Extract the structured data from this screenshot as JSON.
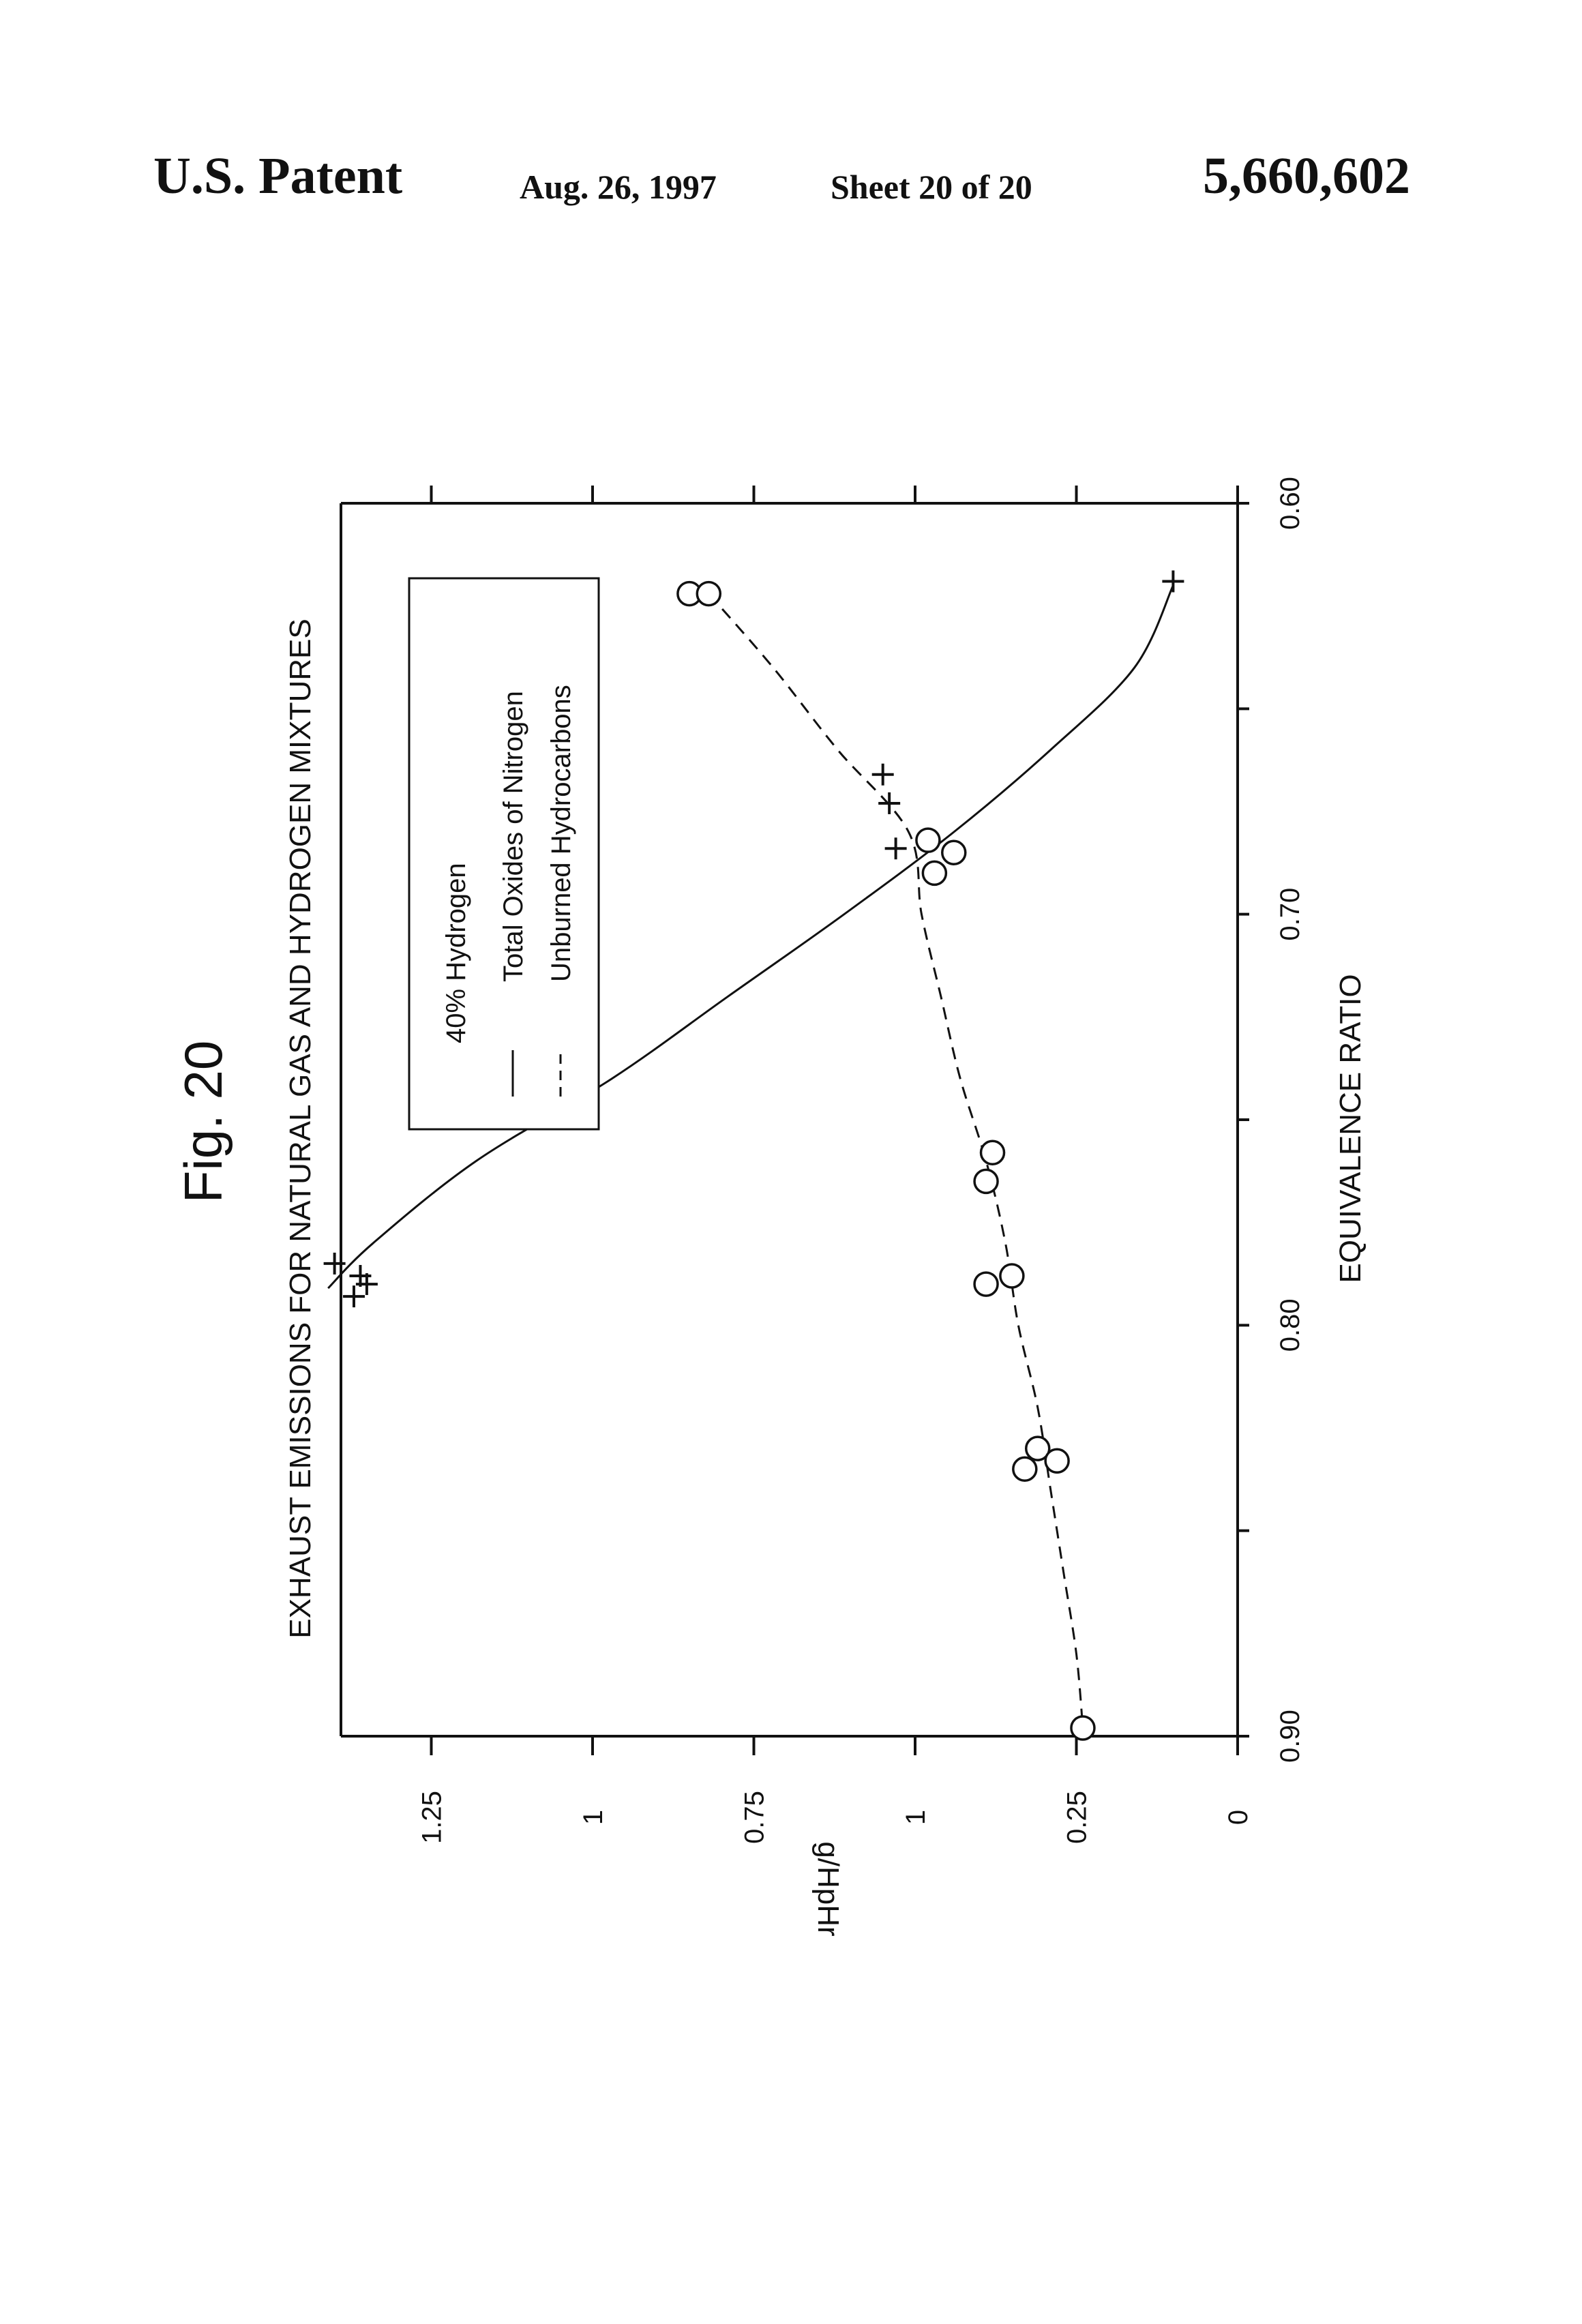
{
  "header": {
    "patent": "U.S. Patent",
    "date": "Aug. 26, 1997",
    "sheet": "Sheet 20 of 20",
    "number": "5,660,602"
  },
  "figure_label": "Fig. 20",
  "chart_data": {
    "type": "scatter",
    "title": "EXHAUST EMISSIONS FOR NATURAL GAS AND HYDROGEN MIXTURES",
    "xlabel": "EQUIVALENCE RATIO",
    "ylabel": "g/HpHr",
    "x_reversed": true,
    "xlim": [
      0.6,
      0.9
    ],
    "ylim": [
      0,
      1.4
    ],
    "x_ticks": [
      0.6,
      0.65,
      0.7,
      0.75,
      0.8,
      0.85,
      0.9
    ],
    "x_tick_labels": [
      "0.60",
      "",
      "0.70",
      "",
      "0.80",
      "",
      "0.90"
    ],
    "y_ticks": [
      0,
      0.25,
      0.5,
      0.75,
      1.0,
      1.25
    ],
    "y_tick_labels": [
      "0",
      "0.25",
      "1",
      "0.75",
      "1",
      "1.25"
    ],
    "legend": {
      "title": "40% Hydrogen",
      "placement": "top-right",
      "entries": [
        {
          "label": "Total Oxides of Nitrogen",
          "line": "solid",
          "marker": "+"
        },
        {
          "label": "Unburned Hydrocarbons",
          "line": "dashed",
          "marker": "o"
        }
      ]
    },
    "series": [
      {
        "name": "Total Oxides of Nitrogen",
        "marker": "+",
        "line": "solid",
        "points": [
          [
            0.79,
            1.35
          ],
          [
            0.793,
            1.37
          ],
          [
            0.785,
            1.4
          ],
          [
            0.788,
            1.36
          ],
          [
            0.684,
            0.53
          ],
          [
            0.673,
            0.54
          ],
          [
            0.666,
            0.55
          ],
          [
            0.619,
            0.1
          ]
        ],
        "fit_curve": [
          [
            0.791,
            1.41
          ],
          [
            0.78,
            1.34
          ],
          [
            0.76,
            1.18
          ],
          [
            0.74,
            0.97
          ],
          [
            0.72,
            0.79
          ],
          [
            0.7,
            0.61
          ],
          [
            0.68,
            0.44
          ],
          [
            0.66,
            0.29
          ],
          [
            0.64,
            0.16
          ],
          [
            0.62,
            0.1
          ]
        ]
      },
      {
        "name": "Unburned Hydrocarbons",
        "marker": "o",
        "line": "dashed",
        "points": [
          [
            0.622,
            0.85
          ],
          [
            0.622,
            0.82
          ],
          [
            0.682,
            0.48
          ],
          [
            0.69,
            0.47
          ],
          [
            0.685,
            0.44
          ],
          [
            0.758,
            0.38
          ],
          [
            0.765,
            0.39
          ],
          [
            0.79,
            0.39
          ],
          [
            0.788,
            0.35
          ],
          [
            0.83,
            0.31
          ],
          [
            0.835,
            0.33
          ],
          [
            0.833,
            0.28
          ],
          [
            0.898,
            0.24
          ]
        ],
        "fit_curve": [
          [
            0.622,
            0.82
          ],
          [
            0.64,
            0.72
          ],
          [
            0.66,
            0.62
          ],
          [
            0.68,
            0.51
          ],
          [
            0.7,
            0.49
          ],
          [
            0.72,
            0.46
          ],
          [
            0.74,
            0.43
          ],
          [
            0.76,
            0.39
          ],
          [
            0.78,
            0.36
          ],
          [
            0.8,
            0.34
          ],
          [
            0.82,
            0.31
          ],
          [
            0.84,
            0.29
          ],
          [
            0.86,
            0.27
          ],
          [
            0.88,
            0.25
          ],
          [
            0.898,
            0.24
          ]
        ]
      }
    ]
  }
}
